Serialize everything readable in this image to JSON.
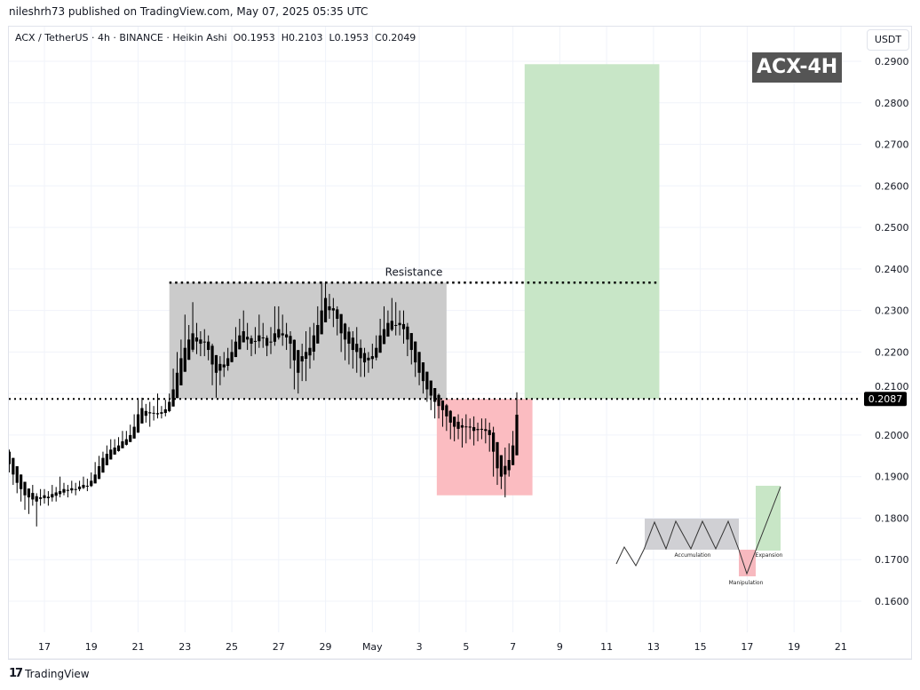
{
  "header": {
    "published": "nileshrh73 published on TradingView.com, May 07, 2025 05:35 UTC"
  },
  "legend": {
    "symbol": "ACX / TetherUS · 4h · BINANCE · Heikin Ashi",
    "open": "O0.1953",
    "high": "H0.2103",
    "low": "L0.1953",
    "close": "C0.2049"
  },
  "price_axis": {
    "unit": "USDT",
    "current_price": "0.2087"
  },
  "badge": "ACX-4H",
  "footer": {
    "brand": "TradingView"
  },
  "colors": {
    "accumulation": "#cbcbcb",
    "manipulation": "#fbbcc1",
    "expansion": "#c5e5c4",
    "candle": "#000000",
    "grid": "#f0f3fa"
  },
  "chart_data": {
    "type": "candlestick",
    "chart_style": "Heikin Ashi",
    "interval": "4h",
    "first_candle": "2025-04-15T12:00",
    "first_open": 0.196,
    "close": [
      0.193,
      0.1905,
      0.1885,
      0.187,
      0.1855,
      0.185,
      0.1845,
      0.184,
      0.185,
      0.1855,
      0.1848,
      0.1858,
      0.1862,
      0.1865,
      0.187,
      0.1868,
      0.1872,
      0.187,
      0.1876,
      0.188,
      0.1878,
      0.189,
      0.1905,
      0.1925,
      0.1945,
      0.1955,
      0.1965,
      0.197,
      0.1975,
      0.1985,
      0.199,
      0.2,
      0.202,
      0.205,
      0.2065,
      0.2058,
      0.2055,
      0.2052,
      0.205,
      0.2055,
      0.2062,
      0.208,
      0.211,
      0.215,
      0.2185,
      0.221,
      0.223,
      0.2245,
      0.2235,
      0.222,
      0.2225,
      0.2205,
      0.217,
      0.215,
      0.2155,
      0.217,
      0.2185,
      0.22,
      0.2225,
      0.224,
      0.225,
      0.223,
      0.222,
      0.2225,
      0.224,
      0.2235,
      0.2215,
      0.2225,
      0.2245,
      0.2255,
      0.224,
      0.2235,
      0.222,
      0.218,
      0.215,
      0.219,
      0.22,
      0.221,
      0.224,
      0.2265,
      0.23,
      0.233,
      0.231,
      0.23,
      0.228,
      0.2245,
      0.223,
      0.222,
      0.2205,
      0.22,
      0.2185,
      0.2175,
      0.218,
      0.219,
      0.221,
      0.224,
      0.2255,
      0.227,
      0.2275,
      0.2265,
      0.227,
      0.2255,
      0.223,
      0.2205,
      0.2175,
      0.215,
      0.213,
      0.211,
      0.2095,
      0.208,
      0.207,
      0.206,
      0.2045,
      0.203,
      0.202,
      0.2015,
      0.2018,
      0.202,
      0.2018,
      0.201,
      0.2012,
      0.2015,
      0.201,
      0.2,
      0.196,
      0.192,
      0.19,
      0.1905,
      0.194,
      0.1975,
      0.2049
    ],
    "high": [
      0.1965,
      0.1935,
      0.1915,
      0.1895,
      0.188,
      0.187,
      0.188,
      0.186,
      0.187,
      0.187,
      0.1865,
      0.188,
      0.1875,
      0.19,
      0.1885,
      0.188,
      0.189,
      0.1885,
      0.189,
      0.19,
      0.1895,
      0.191,
      0.1935,
      0.195,
      0.196,
      0.1975,
      0.199,
      0.199,
      0.1995,
      0.201,
      0.201,
      0.2025,
      0.205,
      0.2085,
      0.209,
      0.2075,
      0.208,
      0.207,
      0.21,
      0.207,
      0.2085,
      0.21,
      0.216,
      0.22,
      0.223,
      0.229,
      0.2265,
      0.232,
      0.227,
      0.225,
      0.2255,
      0.224,
      0.222,
      0.217,
      0.219,
      0.22,
      0.221,
      0.223,
      0.226,
      0.228,
      0.23,
      0.227,
      0.224,
      0.226,
      0.229,
      0.227,
      0.224,
      0.226,
      0.231,
      0.231,
      0.229,
      0.227,
      0.225,
      0.223,
      0.22,
      0.222,
      0.225,
      0.226,
      0.227,
      0.231,
      0.237,
      0.237,
      0.234,
      0.233,
      0.231,
      0.229,
      0.227,
      0.226,
      0.225,
      0.226,
      0.223,
      0.221,
      0.22,
      0.222,
      0.224,
      0.228,
      0.231,
      0.23,
      0.233,
      0.232,
      0.23,
      0.23,
      0.227,
      0.224,
      0.221,
      0.219,
      0.216,
      0.215,
      0.213,
      0.21,
      0.21,
      0.208,
      0.2075,
      0.206,
      0.204,
      0.205,
      0.204,
      0.205,
      0.204,
      0.2045,
      0.203,
      0.204,
      0.204,
      0.203,
      0.202,
      0.197,
      0.195,
      0.197,
      0.198,
      0.201,
      0.2103
    ],
    "low": [
      0.191,
      0.188,
      0.186,
      0.184,
      0.182,
      0.181,
      0.183,
      0.178,
      0.183,
      0.1835,
      0.183,
      0.184,
      0.184,
      0.185,
      0.1855,
      0.185,
      0.186,
      0.1855,
      0.1865,
      0.187,
      0.1865,
      0.1875,
      0.1885,
      0.1905,
      0.1935,
      0.194,
      0.1955,
      0.1955,
      0.196,
      0.197,
      0.1975,
      0.1985,
      0.1995,
      0.202,
      0.204,
      0.203,
      0.202,
      0.2035,
      0.204,
      0.204,
      0.2045,
      0.2055,
      0.207,
      0.21,
      0.215,
      0.218,
      0.219,
      0.22,
      0.2195,
      0.219,
      0.219,
      0.218,
      0.212,
      0.209,
      0.212,
      0.214,
      0.2155,
      0.2175,
      0.2195,
      0.221,
      0.2225,
      0.2205,
      0.219,
      0.2195,
      0.221,
      0.221,
      0.219,
      0.2195,
      0.2215,
      0.223,
      0.2215,
      0.2205,
      0.216,
      0.211,
      0.21,
      0.213,
      0.213,
      0.216,
      0.218,
      0.223,
      0.226,
      0.229,
      0.228,
      0.226,
      0.224,
      0.22,
      0.218,
      0.217,
      0.216,
      0.215,
      0.214,
      0.214,
      0.215,
      0.216,
      0.218,
      0.2205,
      0.223,
      0.224,
      0.225,
      0.224,
      0.224,
      0.222,
      0.219,
      0.217,
      0.214,
      0.212,
      0.21,
      0.208,
      0.206,
      0.204,
      0.204,
      0.202,
      0.201,
      0.199,
      0.1985,
      0.199,
      0.197,
      0.198,
      0.199,
      0.1975,
      0.1985,
      0.199,
      0.198,
      0.196,
      0.19,
      0.188,
      0.187,
      0.185,
      0.19,
      0.193,
      0.1953
    ],
    "ylim": [
      0.1535,
      0.2985
    ],
    "y_ticks": [
      "0.2900",
      "0.2800",
      "0.2700",
      "0.2600",
      "0.2500",
      "0.2400",
      "0.2300",
      "0.2200",
      "0.2100",
      "0.2000",
      "0.1900",
      "0.1800",
      "0.1700",
      "0.1600"
    ],
    "x_ticks": [
      {
        "date": "2025-04-17",
        "label": "17"
      },
      {
        "date": "2025-04-19",
        "label": "19"
      },
      {
        "date": "2025-04-21",
        "label": "21"
      },
      {
        "date": "2025-04-23",
        "label": "23"
      },
      {
        "date": "2025-04-25",
        "label": "25"
      },
      {
        "date": "2025-04-27",
        "label": "27"
      },
      {
        "date": "2025-04-29",
        "label": "29"
      },
      {
        "date": "2025-05-01",
        "label": "May"
      },
      {
        "date": "2025-05-03",
        "label": "3"
      },
      {
        "date": "2025-05-05",
        "label": "5"
      },
      {
        "date": "2025-05-07",
        "label": "7"
      },
      {
        "date": "2025-05-09",
        "label": "9"
      },
      {
        "date": "2025-05-11",
        "label": "11"
      },
      {
        "date": "2025-05-13",
        "label": "13"
      },
      {
        "date": "2025-05-15",
        "label": "15"
      },
      {
        "date": "2025-05-17",
        "label": "17"
      },
      {
        "date": "2025-05-19",
        "label": "19"
      },
      {
        "date": "2025-05-21",
        "label": "21"
      }
    ],
    "grid": true,
    "annotations": {
      "resistance": {
        "label": "Resistance",
        "price": 0.2367,
        "from": "2025-04-22T08:00",
        "to": "2025-05-13T06:00"
      },
      "support_line": {
        "price": 0.2087
      },
      "accumulation_box": {
        "from": "2025-04-22T08:00",
        "to": "2025-05-04T04:00",
        "top": 0.2367,
        "bottom": 0.2087
      },
      "manipulation_box": {
        "from": "2025-05-03T18:00",
        "to": "2025-05-07T20:00",
        "top": 0.2087,
        "bottom": 0.1855
      },
      "expansion_box": {
        "from": "2025-05-07T12:00",
        "to": "2025-05-13T06:00",
        "top": 0.2893,
        "bottom": 0.2087
      }
    },
    "inset_labels": {
      "accumulation": "Accumulation",
      "manipulation": "Manipulation",
      "expansion": "Expansion"
    }
  }
}
